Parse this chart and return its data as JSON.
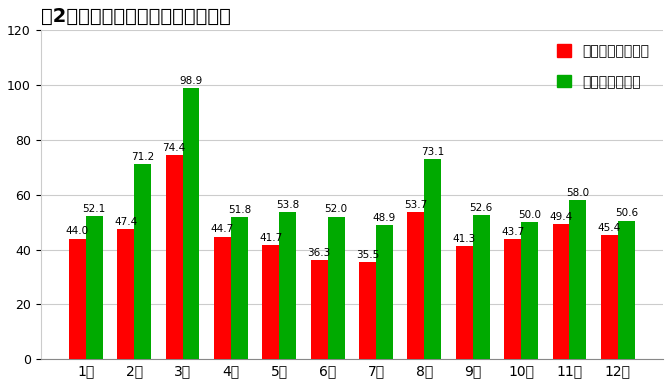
{
  "title": "【2年間】ディズニー月別混雑状況",
  "months": [
    "1月",
    "2月",
    "3月",
    "4月",
    "5月",
    "6月",
    "7月",
    "8月",
    "9月",
    "10月",
    "11月",
    "12月"
  ],
  "disneyland": [
    44.0,
    47.4,
    74.4,
    44.7,
    41.7,
    36.3,
    35.5,
    53.7,
    41.3,
    43.7,
    49.4,
    45.4
  ],
  "disneysea": [
    52.1,
    71.2,
    98.9,
    51.8,
    53.8,
    52.0,
    48.9,
    73.1,
    52.6,
    50.0,
    58.0,
    50.6
  ],
  "land_color": "#FF0000",
  "sea_color": "#00AA00",
  "legend_land": "ディズニーランド",
  "legend_sea": "ディズニーシー",
  "ylim": [
    0,
    120
  ],
  "yticks": [
    0,
    20,
    40,
    60,
    80,
    100,
    120
  ],
  "bg_color": "#FFFFFF",
  "grid_color": "#CCCCCC",
  "bar_width": 0.35,
  "label_fontsize": 7.5,
  "title_fontsize": 14,
  "tick_fontsize": 9,
  "legend_fontsize": 10
}
